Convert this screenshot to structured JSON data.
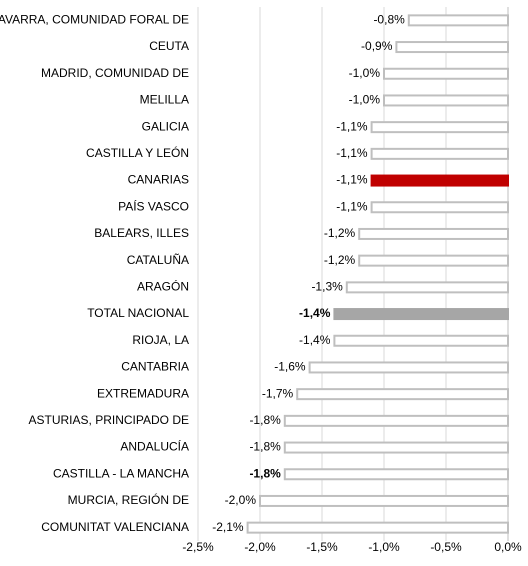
{
  "chart_data": {
    "type": "bar",
    "orientation": "horizontal",
    "categories": [
      "NAVARRA, COMUNIDAD FORAL DE",
      "CEUTA",
      "MADRID, COMUNIDAD DE",
      "MELILLA",
      "GALICIA",
      "CASTILLA Y LEÓN",
      "CANARIAS",
      "PAÍS VASCO",
      "BALEARS, ILLES",
      "CATALUÑA",
      "ARAGÓN",
      "TOTAL NACIONAL",
      "RIOJA, LA",
      "CANTABRIA",
      "EXTREMADURA",
      "ASTURIAS, PRINCIPADO DE",
      "ANDALUCÍA",
      "CASTILLA - LA MANCHA",
      "MURCIA, REGIÓN DE",
      "COMUNITAT VALENCIANA"
    ],
    "values": [
      -0.8,
      -0.9,
      -1.0,
      -1.0,
      -1.1,
      -1.1,
      -1.1,
      -1.1,
      -1.2,
      -1.2,
      -1.3,
      -1.4,
      -1.4,
      -1.6,
      -1.7,
      -1.8,
      -1.8,
      -1.8,
      -2.0,
      -2.1
    ],
    "value_labels": [
      "-0,8%",
      "-0,9%",
      "-1,0%",
      "-1,0%",
      "-1,1%",
      "-1,1%",
      "-1,1%",
      "-1,1%",
      "-1,2%",
      "-1,2%",
      "-1,3%",
      "-1,4%",
      "-1,4%",
      "-1,6%",
      "-1,7%",
      "-1,8%",
      "-1,8%",
      "-1,8%",
      "-2,0%",
      "-2,1%"
    ],
    "colors": [
      "#ffffff",
      "#ffffff",
      "#ffffff",
      "#ffffff",
      "#ffffff",
      "#ffffff",
      "#c00000",
      "#ffffff",
      "#ffffff",
      "#ffffff",
      "#ffffff",
      "#a6a6a6",
      "#ffffff",
      "#ffffff",
      "#ffffff",
      "#ffffff",
      "#ffffff",
      "#ffffff",
      "#ffffff",
      "#ffffff"
    ],
    "edge_color": "#bfbfbf",
    "bold_value_labels": [
      11,
      17
    ],
    "xlim": [
      -2.5,
      0
    ],
    "xticks": [
      {
        "value": -2.5,
        "label": "-2,5%"
      },
      {
        "value": -2.0,
        "label": "-2,0%"
      },
      {
        "value": -1.5,
        "label": "-1,5%"
      },
      {
        "value": -1.0,
        "label": "-1,0%"
      },
      {
        "value": -0.5,
        "label": "-0,5%"
      },
      {
        "value": 0,
        "label": "0,0%"
      }
    ],
    "grid": true
  }
}
